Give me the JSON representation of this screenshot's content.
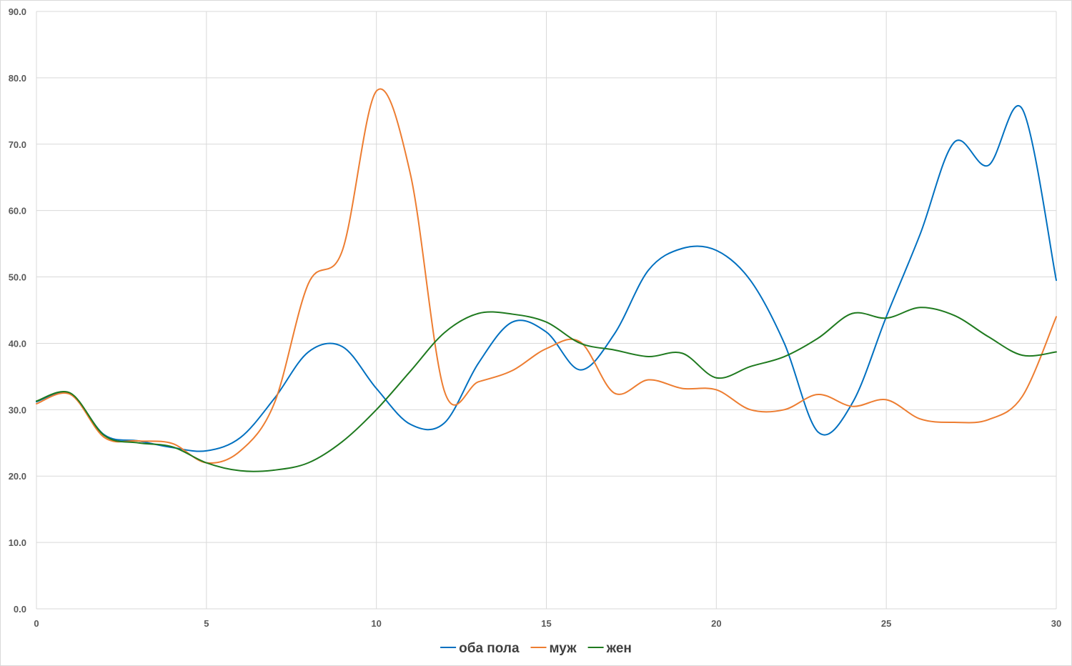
{
  "chart_data": {
    "type": "line",
    "smooth": true,
    "grid": true,
    "legend_position": "bottom",
    "xlim": [
      0,
      30
    ],
    "ylim": [
      0,
      90
    ],
    "x_ticks": [
      "0",
      "5",
      "10",
      "15",
      "20",
      "25",
      "30"
    ],
    "y_ticks": [
      "0.0",
      "10.0",
      "20.0",
      "30.0",
      "40.0",
      "50.0",
      "60.0",
      "70.0",
      "80.0",
      "90.0"
    ],
    "x": [
      0,
      1,
      2,
      3,
      4,
      5,
      6,
      7,
      8,
      9,
      10,
      11,
      12,
      13,
      14,
      15,
      16,
      17,
      18,
      19,
      20,
      21,
      22,
      23,
      24,
      25,
      26,
      27,
      28,
      29,
      30
    ],
    "series": [
      {
        "name": "оба пола",
        "color": "#0070C0",
        "values": [
          31.2,
          32.4,
          26.2,
          25.3,
          24.3,
          23.8,
          25.8,
          31.7,
          38.7,
          39.5,
          33.2,
          27.8,
          28.0,
          37.0,
          43.2,
          41.7,
          36.0,
          41.4,
          51.0,
          54.3,
          54.0,
          49.5,
          40.0,
          26.6,
          31.0,
          44.0,
          56.5,
          70.3,
          66.8,
          75.3,
          49.5
        ]
      },
      {
        "name": "муж",
        "color": "#ED7D31",
        "values": [
          30.9,
          32.3,
          25.8,
          25.3,
          24.9,
          22.0,
          23.8,
          31.0,
          49.0,
          54.0,
          78.0,
          65.5,
          32.8,
          34.2,
          35.9,
          39.2,
          40.2,
          32.5,
          34.5,
          33.2,
          33.0,
          30.0,
          30.0,
          32.3,
          30.5,
          31.5,
          28.6,
          28.1,
          28.5,
          32.0,
          44.0
        ]
      },
      {
        "name": "жен",
        "color": "#1F7A1F",
        "values": [
          31.3,
          32.5,
          26.1,
          25.0,
          24.4,
          22.0,
          20.8,
          20.9,
          22.0,
          25.2,
          30.0,
          35.8,
          41.6,
          44.5,
          44.4,
          43.2,
          40.0,
          39.0,
          38.0,
          38.5,
          34.8,
          36.5,
          38.0,
          40.8,
          44.5,
          43.8,
          45.4,
          44.2,
          41.0,
          38.2,
          38.7
        ]
      }
    ]
  }
}
